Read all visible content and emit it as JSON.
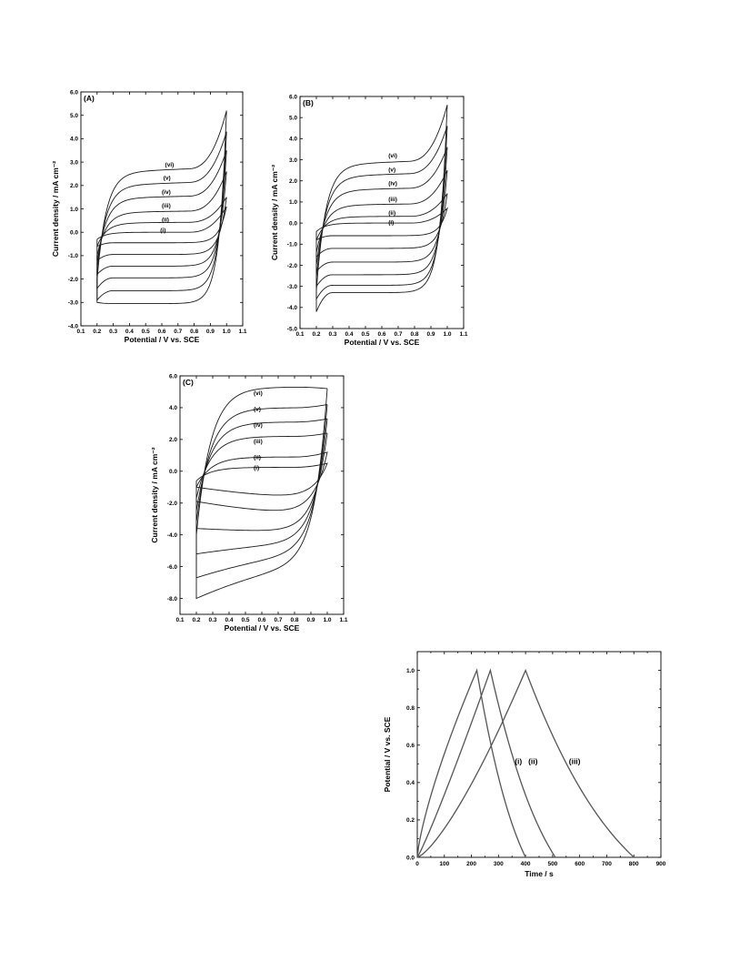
{
  "chart_data": [
    {
      "panel_label": "(A)",
      "type": "line",
      "xlabel": "Potential / V vs. SCE",
      "ylabel": "Current density / mA cm⁻²",
      "xlim": [
        0.1,
        1.1
      ],
      "ylim": [
        -4.0,
        6.0
      ],
      "xticks": [
        "0.1",
        "0.2",
        "0.3",
        "0.4",
        "0.5",
        "0.6",
        "0.7",
        "0.8",
        "0.9",
        "1.0",
        "1.1"
      ],
      "yticks": [
        "-4.0",
        "-3.0",
        "-2.0",
        "-1.0",
        "0.0",
        "1.0",
        "2.0",
        "3.0",
        "4.0",
        "5.0",
        "6.0"
      ],
      "color": "#1a1a1a",
      "series": [
        {
          "name": "(i)",
          "anodic_start": -0.3,
          "anodic_plateau": 0.0,
          "anodic_end": 1.1,
          "cathodic": -0.45,
          "cathodic_start": -0.6
        },
        {
          "name": "(ii)",
          "anodic_start": -0.6,
          "anodic_plateau": 0.4,
          "anodic_end": 1.5,
          "cathodic": -0.95,
          "cathodic_start": -1.2
        },
        {
          "name": "(iii)",
          "anodic_start": -1.0,
          "anodic_plateau": 0.85,
          "anodic_end": 2.6,
          "cathodic": -1.45,
          "cathodic_start": -1.8
        },
        {
          "name": "(iv)",
          "anodic_start": -1.3,
          "anodic_plateau": 1.45,
          "anodic_end": 3.5,
          "cathodic": -1.95,
          "cathodic_start": -2.4
        },
        {
          "name": "(v)",
          "anodic_start": -1.6,
          "anodic_plateau": 2.0,
          "anodic_end": 4.3,
          "cathodic": -2.5,
          "cathodic_start": -2.9
        },
        {
          "name": "(vi)",
          "anodic_start": -2.0,
          "anodic_plateau": 2.55,
          "anodic_end": 5.2,
          "cathodic": -3.05,
          "cathodic_start": -3.0
        }
      ],
      "label_positions": [
        {
          "label": "(i)",
          "x": 0.59,
          "y": 0.0
        },
        {
          "label": "(ii)",
          "x": 0.6,
          "y": 0.45
        },
        {
          "label": "(iii)",
          "x": 0.6,
          "y": 1.05
        },
        {
          "label": "(iv)",
          "x": 0.6,
          "y": 1.65
        },
        {
          "label": "(v)",
          "x": 0.61,
          "y": 2.25
        },
        {
          "label": "(vi)",
          "x": 0.62,
          "y": 2.8
        }
      ]
    },
    {
      "panel_label": "(B)",
      "type": "line",
      "xlabel": "Potential / V vs. SCE",
      "ylabel": "Current density / mA cm⁻²",
      "xlim": [
        0.1,
        1.1
      ],
      "ylim": [
        -5.0,
        6.0
      ],
      "xticks": [
        "0.1",
        "0.2",
        "0.3",
        "0.4",
        "0.5",
        "0.6",
        "0.7",
        "0.8",
        "0.9",
        "1.0",
        "1.1"
      ],
      "yticks": [
        "-5.0",
        "-4.0",
        "-3.0",
        "-2.0",
        "-1.0",
        "0.0",
        "1.0",
        "2.0",
        "3.0",
        "4.0",
        "5.0",
        "6.0"
      ],
      "color": "#1a1a1a",
      "series": [
        {
          "name": "(i)",
          "anodic_start": -0.4,
          "anodic_plateau": 0.0,
          "anodic_end": 0.7,
          "cathodic": -0.6,
          "cathodic_start": -0.8
        },
        {
          "name": "(ii)",
          "anodic_start": -0.8,
          "anodic_plateau": 0.3,
          "anodic_end": 1.4,
          "cathodic": -1.2,
          "cathodic_start": -1.6
        },
        {
          "name": "(iii)",
          "anodic_start": -1.4,
          "anodic_plateau": 0.85,
          "anodic_end": 2.5,
          "cathodic": -1.85,
          "cathodic_start": -2.3
        },
        {
          "name": "(iv)",
          "anodic_start": -2.0,
          "anodic_plateau": 1.55,
          "anodic_end": 3.6,
          "cathodic": -2.45,
          "cathodic_start": -3.0
        },
        {
          "name": "(v)",
          "anodic_start": -2.6,
          "anodic_plateau": 2.2,
          "anodic_end": 4.6,
          "cathodic": -2.95,
          "cathodic_start": -3.6
        },
        {
          "name": "(vi)",
          "anodic_start": -3.2,
          "anodic_plateau": 2.75,
          "anodic_end": 5.6,
          "cathodic": -3.3,
          "cathodic_start": -4.2
        }
      ],
      "label_positions": [
        {
          "label": "(i)",
          "x": 0.64,
          "y": -0.05
        },
        {
          "label": "(ii)",
          "x": 0.64,
          "y": 0.4
        },
        {
          "label": "(iii)",
          "x": 0.64,
          "y": 1.05
        },
        {
          "label": "(iv)",
          "x": 0.64,
          "y": 1.8
        },
        {
          "label": "(v)",
          "x": 0.64,
          "y": 2.45
        },
        {
          "label": "(vi)",
          "x": 0.64,
          "y": 3.1
        }
      ]
    },
    {
      "panel_label": "(C)",
      "type": "line",
      "xlabel": "Potential / V vs. SCE",
      "ylabel": "Current density / mA cm⁻²",
      "xlim": [
        0.1,
        1.1
      ],
      "ylim": [
        -9.0,
        6.0
      ],
      "xticks": [
        "0.1",
        "0.2",
        "0.3",
        "0.4",
        "0.5",
        "0.6",
        "0.7",
        "0.8",
        "0.9",
        "1.0",
        "1.1"
      ],
      "yticks": [
        "-8.0",
        "-6.0",
        "-4.0",
        "-2.0",
        "0.0",
        "2.0",
        "4.0",
        "6.0"
      ],
      "color": "#1a1a1a",
      "series": [
        {
          "name": "(i)",
          "anodic_start": -0.6,
          "anodic_plateau": 0.25,
          "anodic_end": 0.5,
          "cathodic": -1.6,
          "cathodic_start": -1.0
        },
        {
          "name": "(ii)",
          "anodic_start": -1.0,
          "anodic_plateau": 0.9,
          "anodic_end": 1.2,
          "cathodic": -2.6,
          "cathodic_start": -1.9
        },
        {
          "name": "(iii)",
          "anodic_start": -1.7,
          "anodic_plateau": 2.2,
          "anodic_end": 2.4,
          "cathodic": -3.8,
          "cathodic_start": -3.6
        },
        {
          "name": "(iv)",
          "anodic_start": -2.5,
          "anodic_plateau": 3.1,
          "anodic_end": 3.3,
          "cathodic": -4.6,
          "cathodic_start": -5.2
        },
        {
          "name": "(v)",
          "anodic_start": -3.2,
          "anodic_plateau": 4.0,
          "anodic_end": 4.2,
          "cathodic": -5.4,
          "cathodic_start": -6.7
        },
        {
          "name": "(vi)",
          "anodic_start": -4.0,
          "anodic_plateau": 5.3,
          "anodic_end": 5.2,
          "cathodic": -6.2,
          "cathodic_start": -8.0
        }
      ],
      "label_positions": [
        {
          "label": "(i)",
          "x": 0.55,
          "y": 0.1
        },
        {
          "label": "(ii)",
          "x": 0.55,
          "y": 0.75
        },
        {
          "label": "(iii)",
          "x": 0.55,
          "y": 1.75
        },
        {
          "label": "(iv)",
          "x": 0.55,
          "y": 2.8
        },
        {
          "label": "(v)",
          "x": 0.55,
          "y": 3.8
        },
        {
          "label": "(vi)",
          "x": 0.55,
          "y": 4.8
        }
      ]
    },
    {
      "type": "line",
      "xlabel": "Time / s",
      "ylabel": "Potential / V vs. SCE",
      "xlim": [
        0,
        900
      ],
      "ylim": [
        0.0,
        1.1
      ],
      "xticks": [
        "0",
        "100",
        "200",
        "300",
        "400",
        "500",
        "600",
        "700",
        "800",
        "900"
      ],
      "yticks": [
        "0.0",
        "0.2",
        "0.4",
        "0.6",
        "0.8",
        "1.0"
      ],
      "color": "#555555",
      "series": [
        {
          "name": "(i)",
          "charge_end": 220,
          "discharge_end": 400,
          "charge_shape": 0.75
        },
        {
          "name": "(ii)",
          "charge_end": 270,
          "discharge_end": 510,
          "charge_shape": 1.1
        },
        {
          "name": "(iii)",
          "charge_end": 400,
          "discharge_end": 800,
          "charge_shape": 1.35
        }
      ],
      "label_positions": [
        {
          "label": "(i)",
          "x": 360,
          "y": 0.5
        },
        {
          "label": "(ii)",
          "x": 410,
          "y": 0.5
        },
        {
          "label": "(iii)",
          "x": 560,
          "y": 0.5
        }
      ]
    }
  ]
}
